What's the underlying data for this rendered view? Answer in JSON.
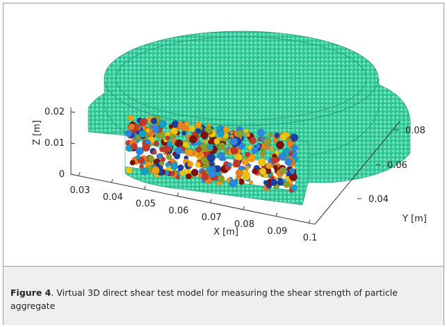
{
  "figure": {
    "z_ticks": [
      "0.02",
      "0.01",
      "0"
    ],
    "z_label": "Z [m]",
    "x_ticks": [
      "0.03",
      "0.04",
      "0.05",
      "0.06",
      "0.07",
      "0.08",
      "0.09",
      "0.1"
    ],
    "x_label": "X [m]",
    "y_ticks": [
      "0.08",
      "0.06",
      "0.04"
    ],
    "y_label": "Y [m]",
    "caption_label": "Figure 4",
    "caption_text": ". Virtual 3D direct shear test model for measuring the shear strength of particle aggregate"
  }
}
